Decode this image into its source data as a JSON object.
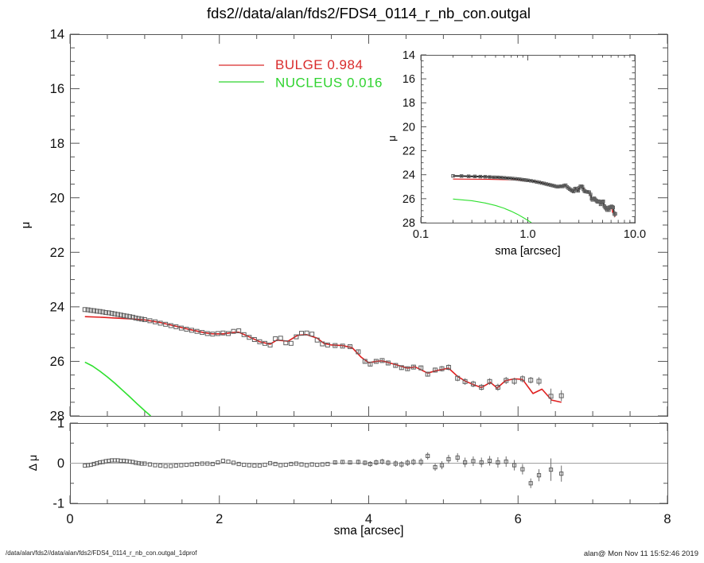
{
  "title": "fds2//data/alan/fds2/FDS4_0114_r_nb_con.outgal",
  "footer": {
    "left": "/data/alan/fds2//data/alan/fds2/FDS4_0114_r_nb_con.outgal_1dprof",
    "right": "alan@  Mon Nov 11 15:52:46 2019"
  },
  "legend": [
    {
      "name": "bulge",
      "label": "BULGE  0.984",
      "color": "#d92b2b"
    },
    {
      "name": "nucleus",
      "label": "NUCLEUS  0.016",
      "color": "#2fd32f"
    }
  ],
  "colors": {
    "bulge": "#e01f1f",
    "nucleus": "#2ee02e",
    "data_marker": "#5f5f5f",
    "data_line": "#1a1a1a",
    "axis": "#555555",
    "tick_label": "#111111",
    "zero_line": "#a0a0a0",
    "error_bar": "#6e6e6e"
  },
  "chart_data": [
    {
      "id": "main",
      "type": "scatter",
      "xlabel": "sma [arcsec]",
      "ylabel": "μ",
      "xlim": [
        0,
        8
      ],
      "ylim_top_bottom": [
        14,
        28
      ],
      "x_major": [
        0,
        2,
        4,
        6,
        8
      ],
      "x_minor_step": 0.5,
      "y_major": [
        14,
        16,
        18,
        20,
        22,
        24,
        26,
        28
      ],
      "y_minor_step": 0.5,
      "y_tick_labels": [
        "14",
        "16",
        "18",
        "20",
        "22",
        "24",
        "26",
        "28"
      ],
      "grid": false,
      "legend_position": "top-left-inside",
      "series": [
        {
          "name": "galaxy-data",
          "marker": "square",
          "color": "#5f5f5f",
          "x": [
            0.2,
            0.24,
            0.28,
            0.32,
            0.36,
            0.4,
            0.44,
            0.48,
            0.52,
            0.56,
            0.6,
            0.64,
            0.68,
            0.72,
            0.76,
            0.8,
            0.84,
            0.88,
            0.92,
            0.96,
            1.0,
            1.07,
            1.14,
            1.21,
            1.28,
            1.35,
            1.42,
            1.49,
            1.56,
            1.63,
            1.7,
            1.77,
            1.84,
            1.91,
            1.98,
            2.05,
            2.12,
            2.19,
            2.26,
            2.33,
            2.4,
            2.47,
            2.54,
            2.61,
            2.68,
            2.75,
            2.82,
            2.89,
            2.96,
            3.03,
            3.1,
            3.17,
            3.24,
            3.31,
            3.38,
            3.45,
            3.55,
            3.65,
            3.75,
            3.86,
            3.95,
            4.02,
            4.1,
            4.18,
            4.26,
            4.36,
            4.44,
            4.52,
            4.6,
            4.7,
            4.79,
            4.89,
            4.98,
            5.07,
            5.19,
            5.29,
            5.4,
            5.51,
            5.62,
            5.73,
            5.84,
            5.95,
            6.06,
            6.17,
            6.28,
            6.44,
            6.58
          ],
          "y": [
            24.1,
            24.11,
            24.13,
            24.14,
            24.16,
            24.17,
            24.19,
            24.21,
            24.22,
            24.24,
            24.26,
            24.28,
            24.3,
            24.32,
            24.34,
            24.36,
            24.38,
            24.41,
            24.43,
            24.45,
            24.47,
            24.51,
            24.55,
            24.6,
            24.64,
            24.69,
            24.73,
            24.78,
            24.82,
            24.86,
            24.9,
            24.94,
            24.98,
            25.0,
            24.98,
            24.96,
            24.98,
            24.9,
            24.88,
            25.02,
            25.12,
            25.2,
            25.28,
            25.34,
            25.4,
            25.17,
            25.15,
            25.32,
            25.34,
            25.1,
            24.97,
            24.96,
            25.0,
            25.22,
            25.36,
            25.4,
            25.42,
            25.44,
            25.46,
            25.65,
            26.0,
            26.1,
            26.0,
            25.97,
            26.06,
            26.15,
            26.23,
            26.27,
            26.21,
            26.24,
            26.47,
            26.32,
            26.27,
            26.22,
            26.62,
            26.74,
            26.83,
            26.95,
            26.74,
            26.95,
            26.7,
            26.73,
            26.64,
            26.69,
            26.73,
            27.28,
            27.26
          ],
          "yerr": [
            0,
            0,
            0,
            0,
            0,
            0,
            0,
            0,
            0,
            0,
            0,
            0,
            0,
            0,
            0,
            0,
            0,
            0,
            0,
            0,
            0,
            0,
            0,
            0,
            0,
            0,
            0,
            0,
            0,
            0,
            0,
            0,
            0,
            0,
            0,
            0,
            0,
            0,
            0,
            0,
            0,
            0,
            0,
            0,
            0,
            0,
            0,
            0,
            0,
            0,
            0,
            0,
            0,
            0,
            0,
            0,
            0.05,
            0.05,
            0.05,
            0.06,
            0.06,
            0.07,
            0.07,
            0.07,
            0.07,
            0.08,
            0.08,
            0.08,
            0.08,
            0.09,
            0.09,
            0.09,
            0.1,
            0.11,
            0.11,
            0.12,
            0.12,
            0.12,
            0.12,
            0.13,
            0.13,
            0.13,
            0.13,
            0.12,
            0.15,
            0.28,
            0.2
          ]
        },
        {
          "name": "bulge-model",
          "line": true,
          "color": "#e01f1f",
          "x": [
            0.2,
            0.4,
            0.6,
            0.8,
            1.0,
            1.2,
            1.4,
            1.6,
            1.8,
            1.91,
            2.05,
            2.19,
            2.26,
            2.4,
            2.54,
            2.68,
            2.77,
            2.92,
            3.05,
            3.17,
            3.31,
            3.4,
            3.5,
            3.65,
            3.78,
            3.9,
            4.0,
            4.1,
            4.18,
            4.36,
            4.52,
            4.62,
            4.79,
            4.89,
            4.98,
            5.07,
            5.19,
            5.29,
            5.4,
            5.51,
            5.63,
            5.72,
            5.83,
            5.95,
            6.06,
            6.2,
            6.32,
            6.45,
            6.58
          ],
          "y": [
            24.36,
            24.38,
            24.41,
            24.44,
            24.48,
            24.57,
            24.7,
            24.83,
            24.95,
            24.99,
            24.99,
            24.94,
            24.93,
            25.1,
            25.28,
            25.37,
            25.22,
            25.26,
            25.04,
            25.02,
            25.15,
            25.34,
            25.4,
            25.42,
            25.5,
            25.85,
            26.05,
            26.0,
            25.98,
            26.12,
            26.25,
            26.2,
            26.43,
            26.35,
            26.3,
            26.25,
            26.55,
            26.72,
            26.85,
            26.96,
            26.77,
            26.98,
            26.71,
            26.64,
            26.66,
            27.18,
            27.02,
            27.42,
            27.5
          ]
        },
        {
          "name": "nucleus-model",
          "line": true,
          "color": "#2ee02e",
          "x": [
            0.2,
            0.3,
            0.4,
            0.5,
            0.6,
            0.7,
            0.8,
            0.9,
            1.0,
            1.08
          ],
          "y": [
            26.03,
            26.17,
            26.36,
            26.57,
            26.8,
            27.05,
            27.3,
            27.56,
            27.81,
            28.0
          ]
        }
      ]
    },
    {
      "id": "inset",
      "type": "scatter",
      "xscale": "log",
      "xlabel": "sma [arcsec]",
      "ylabel": "μ",
      "xlim": [
        0.1,
        10
      ],
      "ylim_top_bottom": [
        14,
        28
      ],
      "x_major": [
        0.1,
        1,
        10
      ],
      "x_tick_labels": [
        "0.1",
        "1.0",
        "10.0"
      ],
      "y_major": [
        14,
        16,
        18,
        20,
        22,
        24,
        26,
        28
      ],
      "y_minor_step": 0.5,
      "y_tick_labels": [
        "14",
        "16",
        "18",
        "20",
        "22",
        "24",
        "26",
        "28"
      ],
      "grid": false,
      "series_from": "main",
      "connect_data_line": true
    },
    {
      "id": "residual",
      "type": "scatter",
      "xlabel": "sma [arcsec]",
      "ylabel": "Δ μ",
      "xlim": [
        0,
        8
      ],
      "ylim_top_bottom": [
        1,
        -1
      ],
      "x_major": [
        0,
        2,
        4,
        6,
        8
      ],
      "x_minor_step": 0.5,
      "x_tick_labels": [
        "0",
        "2",
        "4",
        "6",
        "8"
      ],
      "y_major": [
        1,
        0,
        -1
      ],
      "y_minor_step": 0.5,
      "y_tick_labels": [
        "1",
        "0",
        "-1"
      ],
      "zero_line": true,
      "grid": false,
      "series": [
        {
          "name": "residuals",
          "marker": "square",
          "color": "#5f5f5f",
          "x": [
            0.2,
            0.24,
            0.28,
            0.32,
            0.36,
            0.4,
            0.44,
            0.48,
            0.52,
            0.56,
            0.6,
            0.64,
            0.68,
            0.72,
            0.76,
            0.8,
            0.84,
            0.88,
            0.92,
            0.96,
            1.0,
            1.07,
            1.14,
            1.21,
            1.28,
            1.35,
            1.42,
            1.49,
            1.56,
            1.63,
            1.7,
            1.77,
            1.84,
            1.91,
            1.98,
            2.05,
            2.12,
            2.19,
            2.26,
            2.33,
            2.4,
            2.47,
            2.54,
            2.61,
            2.68,
            2.75,
            2.82,
            2.89,
            2.96,
            3.03,
            3.1,
            3.17,
            3.24,
            3.31,
            3.38,
            3.45,
            3.55,
            3.65,
            3.75,
            3.86,
            3.95,
            4.02,
            4.1,
            4.18,
            4.26,
            4.36,
            4.44,
            4.52,
            4.6,
            4.7,
            4.79,
            4.89,
            4.98,
            5.07,
            5.19,
            5.29,
            5.4,
            5.51,
            5.62,
            5.73,
            5.84,
            5.95,
            6.06,
            6.17,
            6.28,
            6.44,
            6.58
          ],
          "y": [
            -0.06,
            -0.05,
            -0.04,
            -0.02,
            0.0,
            0.02,
            0.03,
            0.05,
            0.06,
            0.07,
            0.07,
            0.07,
            0.06,
            0.06,
            0.05,
            0.04,
            0.03,
            0.01,
            0.0,
            -0.01,
            -0.01,
            -0.03,
            -0.05,
            -0.06,
            -0.07,
            -0.07,
            -0.06,
            -0.05,
            -0.04,
            -0.03,
            -0.02,
            -0.01,
            -0.01,
            -0.02,
            0.02,
            0.06,
            0.04,
            0.01,
            -0.02,
            -0.04,
            -0.05,
            -0.06,
            -0.06,
            -0.04,
            0.0,
            -0.02,
            -0.05,
            -0.04,
            -0.02,
            -0.01,
            -0.03,
            -0.05,
            -0.03,
            -0.04,
            -0.03,
            -0.02,
            0.02,
            0.03,
            0.02,
            0.03,
            0.01,
            -0.02,
            0.02,
            0.04,
            0.01,
            -0.01,
            -0.03,
            0.01,
            0.03,
            0.03,
            0.18,
            -0.1,
            -0.05,
            0.1,
            0.14,
            0.02,
            0.05,
            0.02,
            0.06,
            0.02,
            0.04,
            -0.05,
            -0.15,
            -0.5,
            -0.3,
            -0.16,
            -0.26
          ],
          "yerr": [
            0,
            0,
            0,
            0,
            0,
            0,
            0,
            0,
            0,
            0,
            0,
            0,
            0,
            0,
            0,
            0,
            0,
            0,
            0,
            0,
            0,
            0,
            0,
            0,
            0,
            0,
            0,
            0,
            0,
            0,
            0,
            0,
            0,
            0,
            0,
            0,
            0,
            0,
            0,
            0,
            0,
            0,
            0,
            0,
            0,
            0,
            0,
            0,
            0,
            0,
            0,
            0,
            0,
            0,
            0,
            0,
            0.05,
            0.05,
            0.05,
            0.06,
            0.06,
            0.07,
            0.07,
            0.07,
            0.07,
            0.08,
            0.08,
            0.08,
            0.08,
            0.09,
            0.09,
            0.09,
            0.1,
            0.11,
            0.11,
            0.12,
            0.12,
            0.12,
            0.12,
            0.13,
            0.13,
            0.13,
            0.13,
            0.12,
            0.15,
            0.28,
            0.2
          ]
        }
      ]
    }
  ]
}
